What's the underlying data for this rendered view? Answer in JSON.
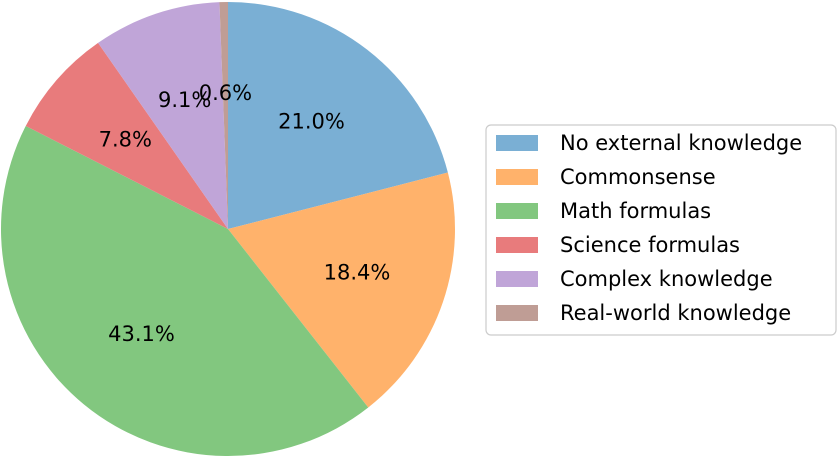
{
  "chart_data": {
    "type": "pie",
    "labels": [
      "No external knowledge",
      "Commonsense",
      "Math formulas",
      "Science formulas",
      "Complex knowledge",
      "Real-world knowledge"
    ],
    "values": [
      21.0,
      18.4,
      43.1,
      7.8,
      9.1,
      0.6
    ],
    "value_labels": [
      "21.0%",
      "18.4%",
      "43.1%",
      "7.8%",
      "9.1%",
      "0.6%"
    ],
    "colors": [
      "#7aafd4",
      "#ffb26b",
      "#82c77f",
      "#e87b7c",
      "#c0a5d8",
      "#bf9d95"
    ],
    "start_angle_deg": 90,
    "direction": "clockwise",
    "legend_position": "right",
    "title": ""
  }
}
